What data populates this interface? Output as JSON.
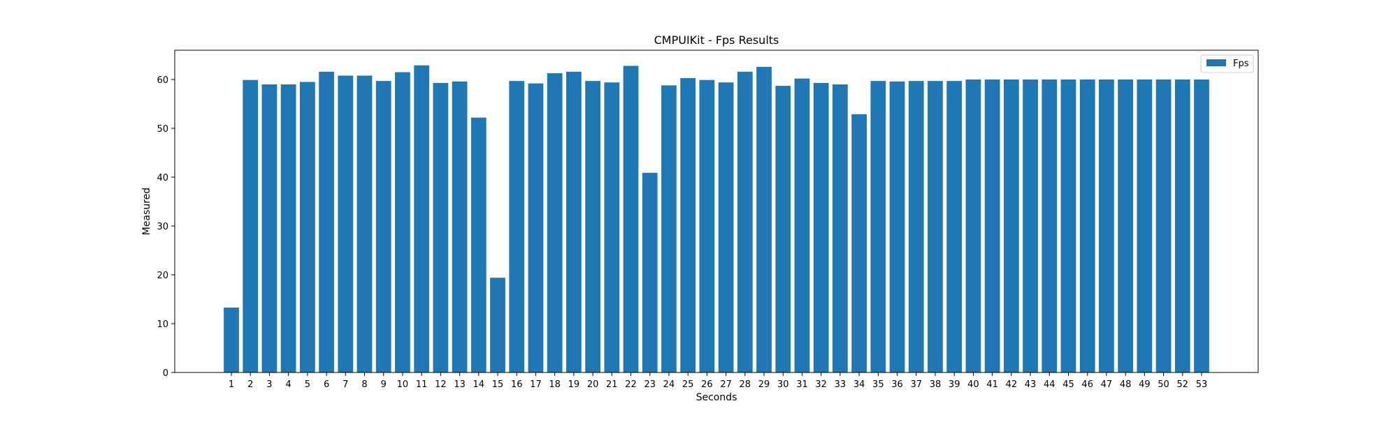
{
  "chart_data": {
    "type": "bar",
    "title": "CMPUIKit - Fps Results",
    "xlabel": "Seconds",
    "ylabel": "Measured",
    "categories": [
      "1",
      "2",
      "3",
      "4",
      "5",
      "6",
      "7",
      "8",
      "9",
      "10",
      "11",
      "12",
      "13",
      "14",
      "15",
      "16",
      "17",
      "18",
      "19",
      "20",
      "21",
      "22",
      "23",
      "24",
      "25",
      "26",
      "27",
      "28",
      "29",
      "30",
      "31",
      "32",
      "33",
      "34",
      "35",
      "36",
      "37",
      "38",
      "39",
      "40",
      "41",
      "42",
      "43",
      "44",
      "45",
      "46",
      "47",
      "48",
      "49",
      "50",
      "52",
      "53"
    ],
    "series": [
      {
        "name": "Fps",
        "color": "#1f77b4",
        "values": [
          13.3,
          59.9,
          59.0,
          59.0,
          59.5,
          61.6,
          60.8,
          60.8,
          59.7,
          61.5,
          62.9,
          59.3,
          59.6,
          52.2,
          19.4,
          59.7,
          59.2,
          61.3,
          61.6,
          59.7,
          59.4,
          62.8,
          40.9,
          58.8,
          60.3,
          59.9,
          59.4,
          61.6,
          62.6,
          58.7,
          60.2,
          59.3,
          59.0,
          52.9,
          59.7,
          59.6,
          59.7,
          59.7,
          59.7,
          60.0,
          60.0,
          60.0,
          60.0,
          60.0,
          60.0,
          60.0,
          60.0,
          60.0,
          60.0,
          60.0,
          60.0,
          60.0
        ]
      }
    ],
    "ylim": [
      0,
      66
    ],
    "yticks": [
      0,
      10,
      20,
      30,
      40,
      50,
      60
    ],
    "grid": false,
    "legend_position": "top-right"
  }
}
